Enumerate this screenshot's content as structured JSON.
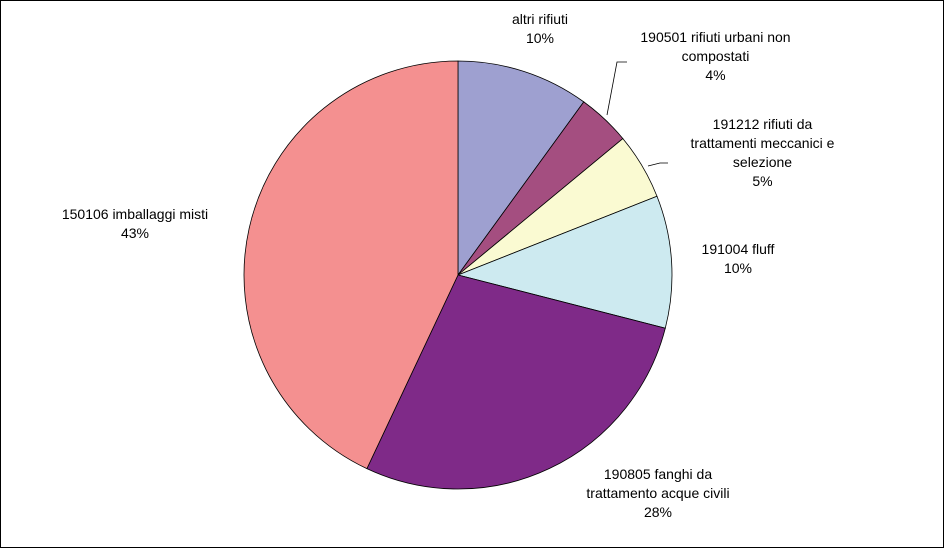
{
  "chart_data": {
    "type": "pie",
    "categories": [
      "altri rifiuti",
      "190501 rifiuti urbani non compostati",
      "191212 rifiuti da trattamenti meccanici e selezione",
      "191004 fluff",
      "190805 fanghi da trattamento acque civili",
      "150106 imballaggi misti"
    ],
    "values": [
      10,
      4,
      5,
      10,
      28,
      43
    ],
    "value_labels": [
      "10%",
      "4%",
      "5%",
      "10%",
      "28%",
      "43%"
    ],
    "colors": [
      "#9ea0d0",
      "#a44e80",
      "#fafad2",
      "#cdeaf0",
      "#7f2a88",
      "#f49090"
    ]
  }
}
